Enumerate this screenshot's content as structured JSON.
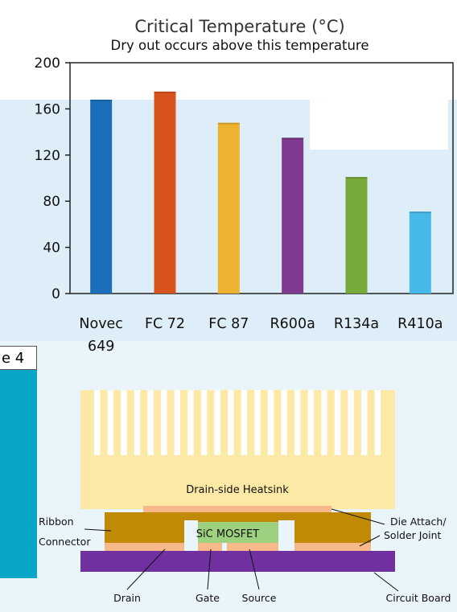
{
  "chart_data": {
    "type": "bar",
    "title": "Critical Temperature (°C)",
    "subtitle": "Dry out occurs above this temperature",
    "categories": [
      "Novec 649",
      "FC 72",
      "FC 87",
      "R600a",
      "R134a",
      "R410a"
    ],
    "category_lines": [
      [
        "Novec",
        "649"
      ],
      [
        "FC 72"
      ],
      [
        "FC 87"
      ],
      [
        "R600a"
      ],
      [
        "R134a"
      ],
      [
        "R410a"
      ]
    ],
    "values": [
      168,
      175,
      148,
      135,
      101,
      71
    ],
    "colors": [
      "#1a6fb8",
      "#d9531e",
      "#edb22f",
      "#7e3a8e",
      "#77a83a",
      "#47b9e8"
    ],
    "ylim": [
      0,
      200
    ],
    "yticks": [
      0,
      40,
      80,
      120,
      160,
      200
    ],
    "grid": false,
    "legend": "none"
  },
  "side_tab": {
    "label": "e 4"
  },
  "diagram": {
    "heatsink_label": "Drain-side Heatsink",
    "mosfet_label": "SiC MOSFET",
    "ribbon_label_1": "Ribbon",
    "ribbon_label_2": "Connector",
    "die_attach_label_1": "Die Attach/",
    "die_attach_label_2": "Solder Joint",
    "drain_label": "Drain",
    "gate_label": "Gate",
    "source_label": "Source",
    "board_label": "Circuit Board",
    "colors": {
      "heatsink": "#fde9a6",
      "solder": "#f7b98a",
      "ribbon": "#c08a04",
      "mosfet": "#9dd17f",
      "board": "#7030a0"
    }
  }
}
